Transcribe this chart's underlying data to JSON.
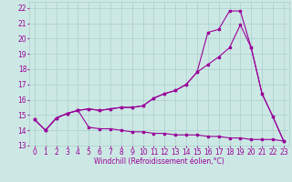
{
  "xlabel": "Windchill (Refroidissement éolien,°C)",
  "background_color": "#cce8e4",
  "grid_color": "#aacfcb",
  "line_color": "#990099",
  "xlim": [
    -0.5,
    23.5
  ],
  "ylim": [
    13,
    22.4
  ],
  "yticks": [
    13,
    14,
    15,
    16,
    17,
    18,
    19,
    20,
    21,
    22
  ],
  "xticks": [
    0,
    1,
    2,
    3,
    4,
    5,
    6,
    7,
    8,
    9,
    10,
    11,
    12,
    13,
    14,
    15,
    16,
    17,
    18,
    19,
    20,
    21,
    22,
    23
  ],
  "line1_x": [
    0,
    1,
    2,
    3,
    4,
    5,
    6,
    7,
    8,
    9,
    10,
    11,
    12,
    13,
    14,
    15,
    16,
    17,
    18,
    19,
    20,
    21,
    22,
    23
  ],
  "line1_y": [
    14.7,
    14.0,
    14.8,
    15.1,
    15.3,
    15.4,
    15.3,
    15.4,
    15.5,
    15.5,
    15.6,
    16.1,
    16.4,
    16.6,
    17.0,
    17.8,
    20.4,
    20.6,
    21.8,
    21.8,
    19.4,
    16.4,
    14.9,
    13.3
  ],
  "line2_x": [
    0,
    1,
    2,
    3,
    4,
    5,
    6,
    7,
    8,
    9,
    10,
    11,
    12,
    13,
    14,
    15,
    16,
    17,
    18,
    19,
    20,
    21,
    22,
    23
  ],
  "line2_y": [
    14.7,
    14.0,
    14.8,
    15.1,
    15.3,
    15.4,
    15.3,
    15.4,
    15.5,
    15.5,
    15.6,
    16.1,
    16.4,
    16.6,
    17.0,
    17.8,
    18.3,
    18.8,
    19.4,
    20.9,
    19.4,
    16.4,
    14.9,
    13.3
  ],
  "line3_x": [
    0,
    1,
    2,
    3,
    4,
    5,
    6,
    7,
    8,
    9,
    10,
    11,
    12,
    13,
    14,
    15,
    16,
    17,
    18,
    19,
    20,
    21,
    22,
    23
  ],
  "line3_y": [
    14.7,
    14.0,
    14.8,
    15.1,
    15.3,
    14.2,
    14.1,
    14.1,
    14.0,
    13.9,
    13.9,
    13.8,
    13.8,
    13.7,
    13.7,
    13.7,
    13.6,
    13.6,
    13.5,
    13.5,
    13.4,
    13.4,
    13.4,
    13.3
  ],
  "tick_labelsize": 5.5,
  "xlabel_fontsize": 5.5,
  "marker_size": 2.0,
  "linewidth": 0.8
}
